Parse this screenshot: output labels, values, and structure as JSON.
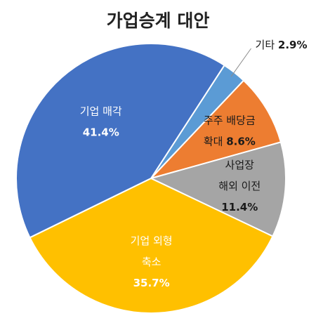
{
  "chart_data": {
    "type": "pie",
    "title": "가업승계 대안",
    "slices": [
      {
        "label_lines": [
          "기타"
        ],
        "pct_text": "2.9%",
        "value": 2.9,
        "color": "#5b9bd5"
      },
      {
        "label_lines": [
          "주주 배당금",
          "확대"
        ],
        "pct_text": "8.6%",
        "value": 8.6,
        "color": "#ed7d31"
      },
      {
        "label_lines": [
          "사업장",
          "해외 이전"
        ],
        "pct_text": "11.4%",
        "value": 11.4,
        "color": "#a5a5a5"
      },
      {
        "label_lines": [
          "기업 외형",
          "축소"
        ],
        "pct_text": "35.7%",
        "value": 35.7,
        "color": "#ffc000"
      },
      {
        "label_lines": [
          "기업 매각"
        ],
        "pct_text": "41.4%",
        "value": 41.4,
        "color": "#4472c4"
      }
    ],
    "start_angle_deg": 33,
    "direction": "clockwise",
    "legend": "none"
  }
}
